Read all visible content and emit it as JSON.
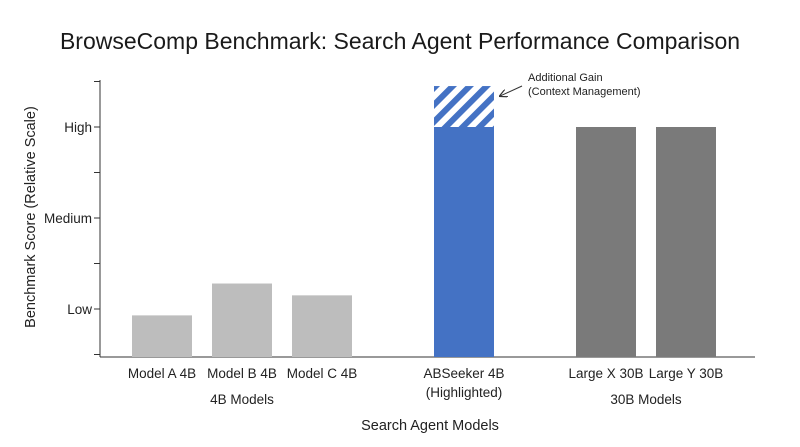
{
  "chart_data": {
    "type": "bar",
    "title": "BrowseComp Benchmark: Search Agent Performance Comparison",
    "xlabel": "Search Agent Models",
    "ylabel": "Benchmark Score (Relative Scale)",
    "ylim": [
      0,
      4
    ],
    "y_ticks": [
      {
        "value": 0.5,
        "label": ""
      },
      {
        "value": 1.0,
        "label": "Low"
      },
      {
        "value": 1.5,
        "label": ""
      },
      {
        "value": 2.0,
        "label": "Medium"
      },
      {
        "value": 2.5,
        "label": ""
      },
      {
        "value": 3.0,
        "label": "High"
      },
      {
        "value": 3.5,
        "label": ""
      }
    ],
    "categories": [
      {
        "label": "Model A 4B",
        "lines": [
          "Model A 4B"
        ],
        "value": 0.93,
        "extra": 0,
        "color": "#bdbdbd"
      },
      {
        "label": "Model B 4B",
        "lines": [
          "Model B 4B"
        ],
        "value": 1.28,
        "extra": 0,
        "color": "#bdbdbd"
      },
      {
        "label": "Model C 4B",
        "lines": [
          "Model C 4B"
        ],
        "value": 1.15,
        "extra": 0,
        "color": "#bdbdbd"
      },
      {
        "label": "ABSeeker 4B (Highlighted)",
        "lines": [
          "ABSeeker 4B",
          "(Highlighted)"
        ],
        "value": 3.0,
        "extra": 0.45,
        "color": "#4472c4"
      },
      {
        "label": "Large X 30B",
        "lines": [
          "Large X 30B"
        ],
        "value": 3.0,
        "extra": 0,
        "color": "#7a7a7a"
      },
      {
        "label": "Large Y 30B",
        "lines": [
          "Large Y 30B"
        ],
        "value": 3.0,
        "extra": 0,
        "color": "#7a7a7a"
      }
    ],
    "groups": [
      {
        "label": "4B Models",
        "members": [
          0,
          1,
          2
        ]
      },
      {
        "label": "30B Models",
        "members": [
          4,
          5
        ]
      }
    ],
    "annotation": {
      "lines": [
        "Additional Gain",
        "(Context Management)"
      ],
      "target": 3
    },
    "grid": false,
    "legend": "none"
  }
}
